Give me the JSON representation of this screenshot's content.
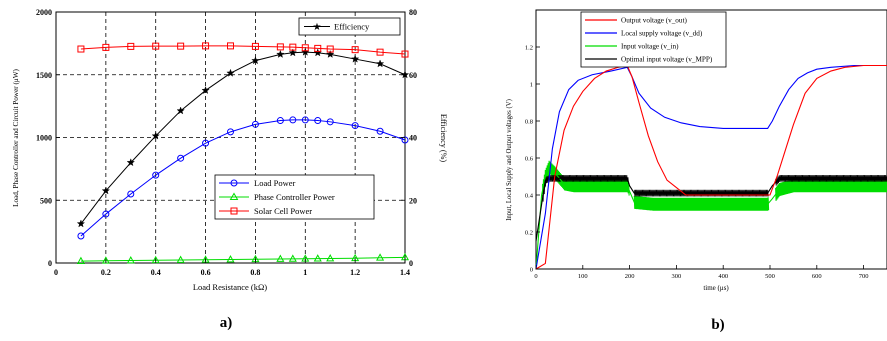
{
  "charts": [
    {
      "type": "line",
      "caption": "a)",
      "xlabel": "Load Resistance (kΩ)",
      "ylabel_left": "Load, Phase Controller and Circuit Power (μW)",
      "ylabel_right": "Efficiency (%)",
      "xlim": [
        0,
        1.4
      ],
      "ylim_left": [
        0,
        2000
      ],
      "ylim_right": [
        0,
        80
      ],
      "xticks": [
        "0",
        "0.2",
        "0.4",
        "0.6",
        "0.8",
        "1",
        "1.2",
        "1.4"
      ],
      "yticks_left": [
        "0",
        "500",
        "1000",
        "1500",
        "2000"
      ],
      "yticks_right": [
        "0",
        "20",
        "40",
        "60",
        "80"
      ],
      "grid": "dashed, major ticks",
      "legends": [
        {
          "placement": "top-right",
          "entries": [
            "Efficiency"
          ]
        },
        {
          "placement": "lower-right",
          "entries": [
            "Load Power",
            "Phase Controller Power",
            "Solar Cell Power"
          ]
        }
      ],
      "series": [
        {
          "name": "Efficiency",
          "axis": "right",
          "color": "#000000",
          "marker": "star",
          "x": [
            0.1,
            0.2,
            0.3,
            0.4,
            0.5,
            0.6,
            0.7,
            0.8,
            0.9,
            0.95,
            1.0,
            1.05,
            1.1,
            1.2,
            1.3,
            1.4
          ],
          "y": [
            12.5,
            23,
            32,
            40.5,
            48.5,
            55,
            60.5,
            64.5,
            66.5,
            67,
            67.2,
            67,
            66.5,
            65,
            63.5,
            60
          ]
        },
        {
          "name": "Load Power",
          "axis": "left",
          "color": "#0000ff",
          "marker": "circle",
          "x": [
            0.1,
            0.2,
            0.3,
            0.4,
            0.5,
            0.6,
            0.7,
            0.8,
            0.9,
            0.95,
            1.0,
            1.05,
            1.1,
            1.2,
            1.3,
            1.4
          ],
          "y": [
            215,
            390,
            550,
            700,
            835,
            955,
            1045,
            1105,
            1135,
            1140,
            1140,
            1135,
            1125,
            1095,
            1050,
            980
          ]
        },
        {
          "name": "Phase Controller Power",
          "axis": "left",
          "color": "#00dd00",
          "marker": "triangle",
          "x": [
            0.1,
            0.2,
            0.3,
            0.4,
            0.5,
            0.6,
            0.7,
            0.8,
            0.9,
            0.95,
            1.0,
            1.05,
            1.1,
            1.2,
            1.3,
            1.4
          ],
          "y": [
            15,
            18,
            20,
            22,
            24,
            26,
            28,
            30,
            32,
            33,
            34,
            35,
            36,
            38,
            42,
            45
          ]
        },
        {
          "name": "Solar Cell Power",
          "axis": "left",
          "color": "#ff0000",
          "marker": "square",
          "x": [
            0.1,
            0.2,
            0.3,
            0.4,
            0.5,
            0.6,
            0.7,
            0.8,
            0.9,
            0.95,
            1.0,
            1.05,
            1.1,
            1.2,
            1.3,
            1.4
          ],
          "y": [
            1705,
            1718,
            1726,
            1728,
            1728,
            1730,
            1730,
            1726,
            1722,
            1720,
            1715,
            1710,
            1705,
            1700,
            1680,
            1665
          ]
        }
      ]
    },
    {
      "type": "line",
      "caption": "b)",
      "xlabel": "time (μs)",
      "ylabel": "Input, Local Supply and Output voltages (V)",
      "xlim": [
        0,
        750
      ],
      "ylim": [
        0,
        1.4
      ],
      "xticks": [
        "0",
        "100",
        "200",
        "300",
        "400",
        "500",
        "600",
        "700"
      ],
      "yticks": [
        "0",
        "0.2",
        "0.4",
        "0.6",
        "0.8",
        "1",
        "1.2"
      ],
      "grid": "off",
      "legend": {
        "placement": "top-left"
      },
      "series": [
        {
          "name": "Output voltage (v_out)",
          "color": "#ff0000",
          "x": [
            0,
            20,
            40,
            60,
            80,
            100,
            125,
            150,
            175,
            195,
            205,
            220,
            240,
            260,
            280,
            300,
            320,
            500,
            515,
            530,
            550,
            575,
            600,
            630,
            660,
            700,
            750
          ],
          "y": [
            0,
            0.03,
            0.5,
            0.75,
            0.88,
            0.96,
            1.03,
            1.07,
            1.09,
            1.1,
            1.04,
            0.9,
            0.72,
            0.58,
            0.48,
            0.44,
            0.4,
            0.4,
            0.5,
            0.62,
            0.78,
            0.95,
            1.03,
            1.07,
            1.09,
            1.1,
            1.1
          ]
        },
        {
          "name": "Local supply voltage (v_dd)",
          "color": "#0000ff",
          "x": [
            0,
            20,
            35,
            50,
            70,
            90,
            120,
            160,
            195,
            205,
            220,
            245,
            275,
            310,
            350,
            400,
            450,
            495,
            505,
            520,
            540,
            560,
            580,
            600,
            630,
            680,
            750
          ],
          "y": [
            0,
            0.3,
            0.65,
            0.85,
            0.97,
            1.02,
            1.05,
            1.07,
            1.09,
            1.04,
            0.95,
            0.87,
            0.82,
            0.79,
            0.77,
            0.76,
            0.76,
            0.76,
            0.8,
            0.88,
            0.97,
            1.03,
            1.06,
            1.08,
            1.09,
            1.1,
            1.1
          ]
        },
        {
          "name": "Input voltage (v_in)",
          "color": "#00dd00",
          "x": [
            0,
            12,
            20,
            28,
            40,
            60,
            80,
            120,
            160,
            195,
            200,
            210,
            250,
            300,
            350,
            400,
            450,
            495,
            505,
            520,
            550,
            600,
            650,
            700,
            750
          ],
          "y": [
            0,
            0.4,
            0.5,
            0.55,
            0.52,
            0.46,
            0.45,
            0.45,
            0.45,
            0.45,
            0.42,
            0.36,
            0.35,
            0.35,
            0.35,
            0.35,
            0.35,
            0.35,
            0.38,
            0.43,
            0.45,
            0.45,
            0.45,
            0.45,
            0.45
          ]
        },
        {
          "name": "Optimal input voltage (v_MPP)",
          "color": "#000000",
          "x": [
            0,
            12,
            20,
            30,
            195,
            200,
            210,
            495,
            505,
            520,
            750
          ],
          "y": [
            0.15,
            0.35,
            0.48,
            0.49,
            0.49,
            0.45,
            0.41,
            0.41,
            0.45,
            0.49,
            0.49
          ]
        }
      ]
    }
  ]
}
